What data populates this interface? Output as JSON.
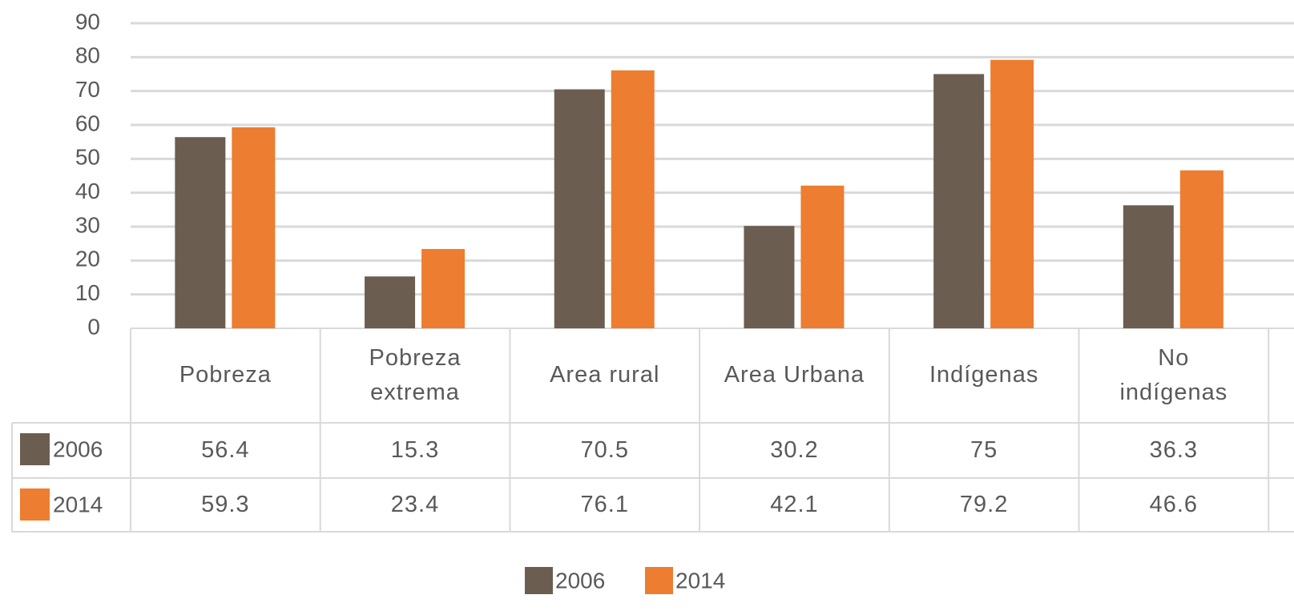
{
  "chart_data": {
    "type": "bar",
    "categories": [
      "Pobreza",
      "Pobreza\nextrema",
      "Area rural",
      "Area Urbana",
      "Indígenas",
      "No\nindígenas"
    ],
    "series": [
      {
        "name": "2006",
        "color": "#6b5e51",
        "values": [
          56.4,
          15.3,
          70.5,
          30.2,
          75,
          36.3
        ]
      },
      {
        "name": "2014",
        "color": "#ed7d31",
        "values": [
          59.3,
          23.4,
          76.1,
          42.1,
          79.2,
          46.6
        ]
      }
    ],
    "ylim": [
      0,
      90
    ],
    "yticks": [
      0,
      10,
      20,
      30,
      40,
      50,
      60,
      70,
      80,
      90
    ],
    "grid": true,
    "legend": "bottom"
  }
}
